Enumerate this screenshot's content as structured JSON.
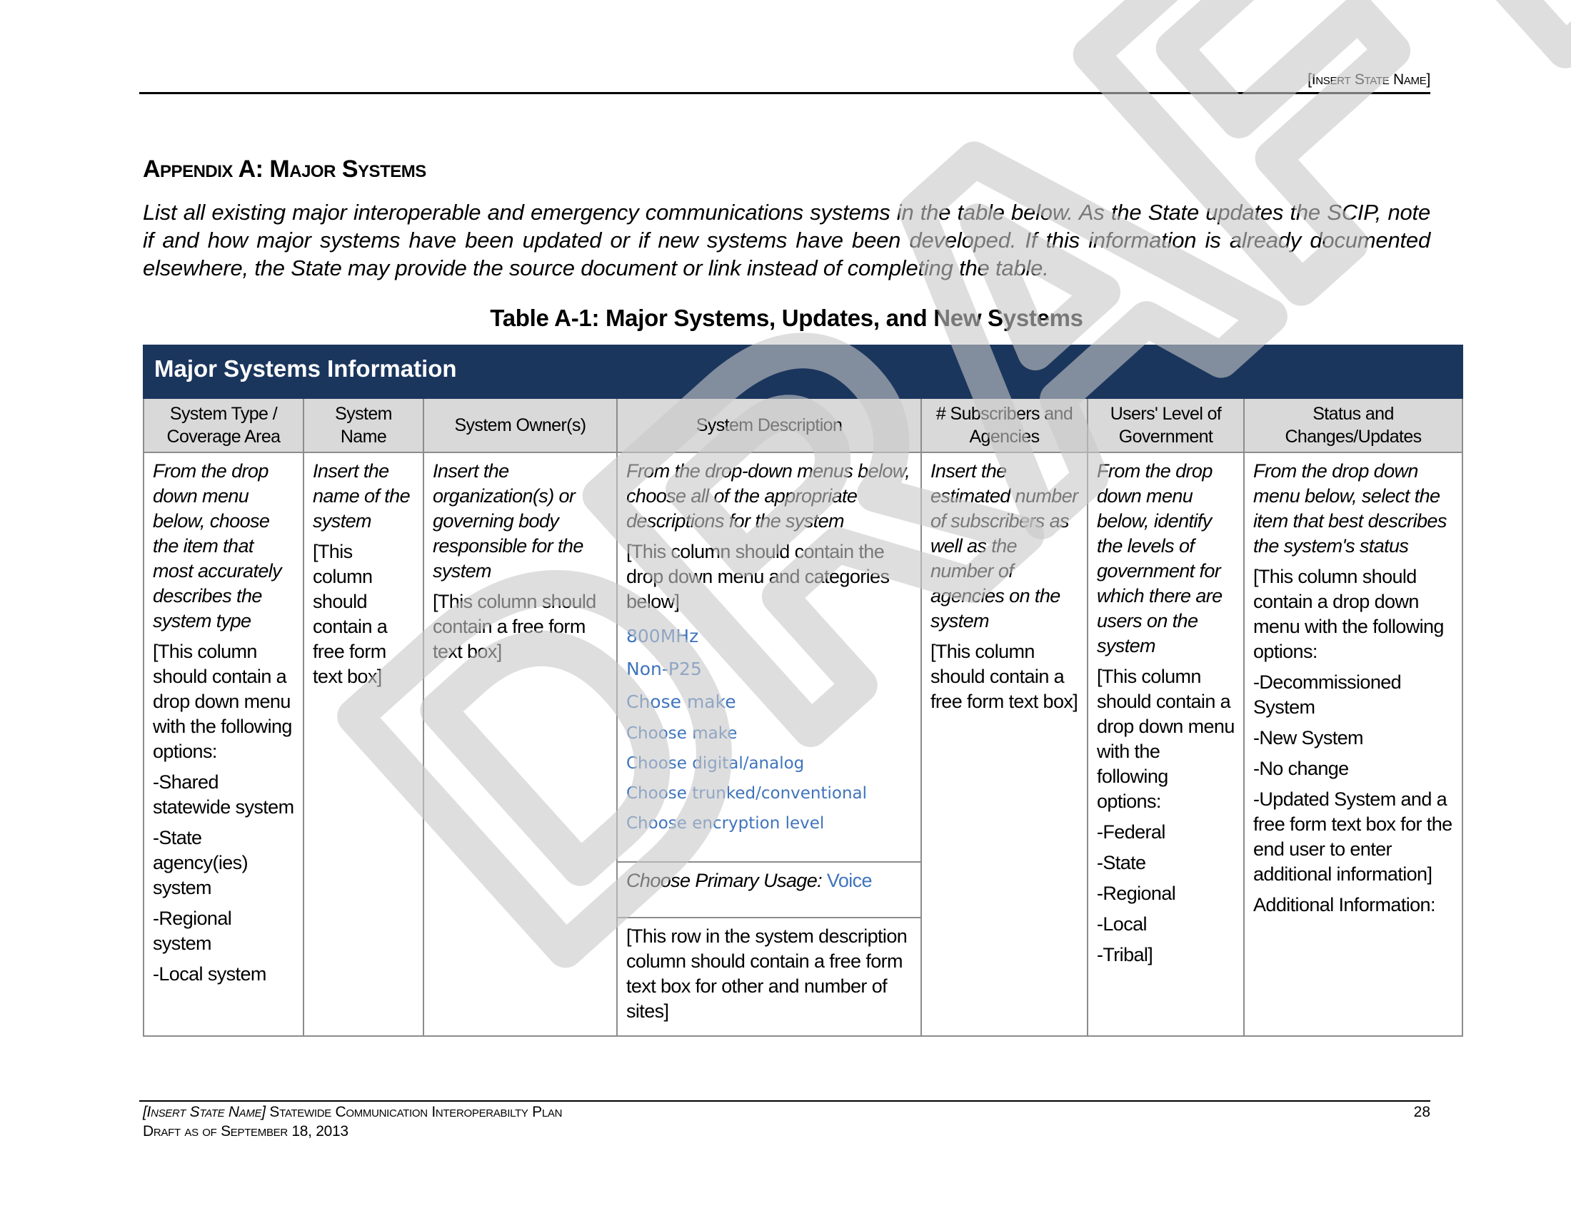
{
  "header": {
    "state_name": "[Insert State Name]"
  },
  "title": "Appendix A: Major Systems",
  "intro": "List all existing major interoperable and emergency communications systems in the table below. As the State updates the SCIP, note if and how major systems have been updated or if new systems have been developed. If this information is already documented elsewhere, the State may provide the source document or link instead of completing the table.",
  "table_caption": "Table A-1: Major Systems, Updates, and New Systems",
  "table": {
    "band_title": "Major Systems Information",
    "band_color": "#1b365d",
    "columns": [
      "System Type / Coverage Area",
      "System Name",
      "System Owner(s)",
      "System Description",
      "# Subscribers and Agencies",
      "Users' Level of Government",
      "Status and Changes/Updates"
    ],
    "col1": {
      "instruction": "From the drop down menu below, choose the item that most accurately describes the system type",
      "note": "[This column should contain a drop down menu with the following options:",
      "options": [
        "-Shared statewide system",
        "-State agency(ies) system",
        "-Regional system",
        "-Local system"
      ]
    },
    "col2": {
      "instruction": "Insert the name of the system",
      "note": "[This column should contain a free form text box]"
    },
    "col3": {
      "instruction": "Insert the organization(s) or governing body responsible for the system",
      "note": "[This column should contain a free form text box]"
    },
    "col4": {
      "instruction": "From the drop-down menus below, choose all of the appropriate descriptions for the system",
      "note": "[This column should contain the drop down menu and categories below]",
      "selected": [
        "800MHz",
        "Non-P25",
        "Chose make"
      ],
      "dropdowns": [
        "Choose make",
        "Choose digital/analog",
        "Choose trunked/conventional",
        "Choose encryption level"
      ],
      "usage_label": "Choose Primary Usage:",
      "usage_value": "Voice",
      "other_note": "[This row in the system description column should contain a free form text box for other and number of sites]",
      "dropdown_color": "#3f74bd"
    },
    "col5": {
      "instruction": "Insert the estimated number of subscribers as well as the number of agencies on the system",
      "note": "[This column should contain a free form text box]"
    },
    "col6": {
      "instruction": "From the drop down menu below, identify the levels of government for which there are users on the system",
      "note": "[This column should contain a drop down menu with the following options:",
      "options": [
        "-Federal",
        "-State",
        "-Regional",
        "-Local",
        "-Tribal]"
      ]
    },
    "col7": {
      "instruction": "From the drop down menu below, select the item that best describes the system's status",
      "note": "[This column should contain a drop down menu with the following options:",
      "options": [
        "-Decommissioned System",
        "-New System",
        "-No change",
        "-Updated System and a free form text box for the end user to enter additional information]"
      ],
      "additional": "Additional Information:"
    }
  },
  "watermark": "DRAFT",
  "footer": {
    "state_name": "[Insert State Name]",
    "plan_title": "Statewide Communication Interoperabilty Plan",
    "draft_date": "Draft as of September 18, 2013",
    "page_number": "28"
  }
}
